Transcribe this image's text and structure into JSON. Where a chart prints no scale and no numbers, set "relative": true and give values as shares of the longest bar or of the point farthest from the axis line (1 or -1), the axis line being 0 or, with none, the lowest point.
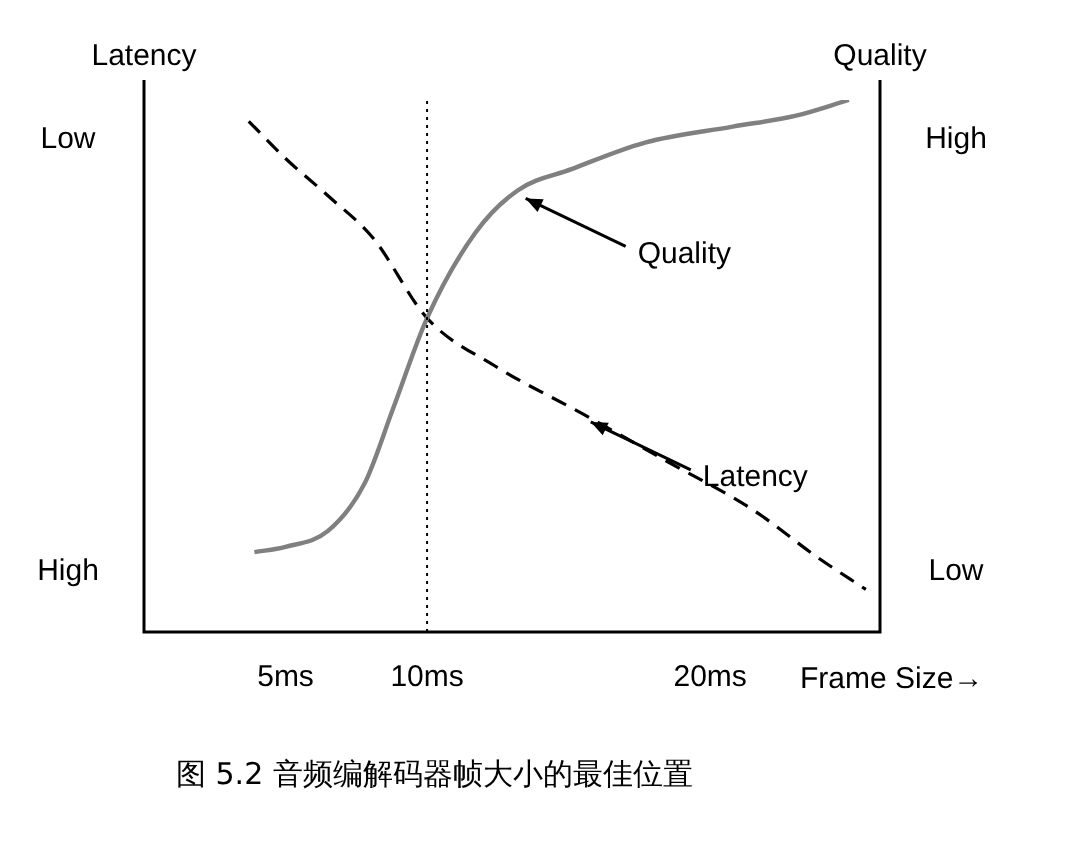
{
  "chart_data": {
    "type": "line",
    "relative": true,
    "ylabel": "Latency",
    "y2label": "Quality",
    "xlabel": "Frame Size→",
    "xlim": [
      0,
      26
    ],
    "xticks": [
      {
        "value": 5,
        "label": "5ms"
      },
      {
        "value": 10,
        "label": "10ms"
      },
      {
        "value": 20,
        "label": "20ms"
      }
    ],
    "grid": false,
    "legend": false,
    "marker": "none",
    "series": [
      {
        "name": "Quality",
        "color": "#808080",
        "line_style": "solid",
        "x": [
          3.9,
          5,
          6.5,
          7.8,
          8.8,
          10,
          11.7,
          13.2,
          15.1,
          17.7,
          20.8,
          23,
          24.9
        ],
        "values": [
          0.15,
          0.16,
          0.19,
          0.28,
          0.42,
          0.59,
          0.75,
          0.83,
          0.87,
          0.92,
          0.95,
          0.97,
          1
        ]
      },
      {
        "name": "Latency",
        "color": "#000000",
        "line_style": "dashed",
        "x": [
          3.7,
          5,
          6.5,
          8.1,
          10,
          12.4,
          15.5,
          18.5,
          21.5,
          23.8,
          25.5
        ],
        "values": [
          0.96,
          0.89,
          0.82,
          0.74,
          0.59,
          0.5,
          0.41,
          0.32,
          0.23,
          0.14,
          0.08
        ]
      }
    ],
    "ref_lines": [
      {
        "axis": "x",
        "value": 10,
        "line_style": "dotted",
        "color": "#000000"
      }
    ],
    "annotations": [
      "Low",
      "High",
      "High",
      "Low",
      "图 5.2 音频编解码器帧大小的最佳位置"
    ]
  }
}
